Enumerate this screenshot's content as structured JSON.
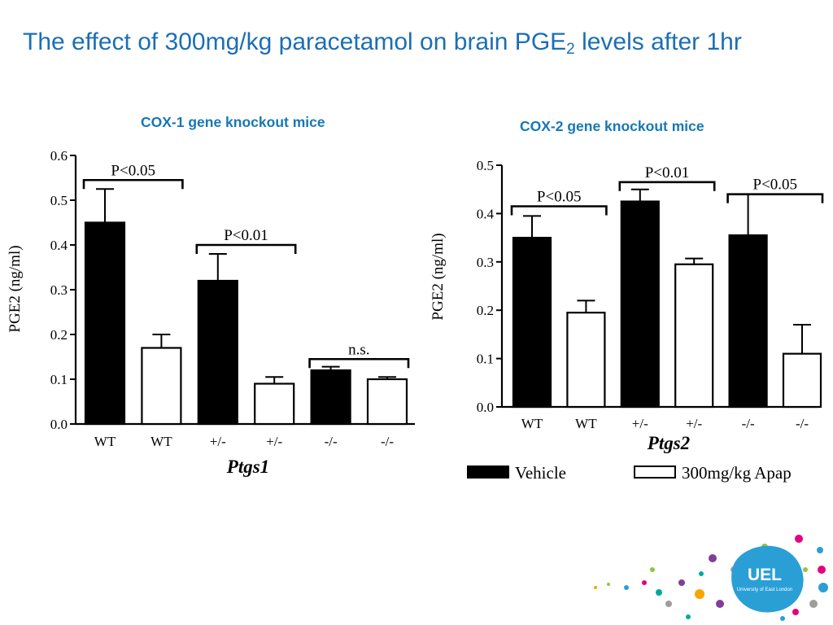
{
  "slide": {
    "title_main": "The effect of 300mg/kg paracetamol on brain PGE",
    "title_sub": "2",
    "title_rest": " levels after 1hr"
  },
  "panels": {
    "left_heading": "COX-1 gene knockout mice",
    "right_heading": "COX-2 gene knockout mice"
  },
  "logo": {
    "text": "UEL",
    "subtext": "University of East London",
    "colors": [
      "#e6007e",
      "#2a9fd6",
      "#8dc63f",
      "#f7a600",
      "#7f3f98",
      "#00a99d",
      "#9d9d9c"
    ]
  },
  "chart_data": [
    {
      "type": "bar",
      "xlabel": "Ptgs1",
      "ylabel": "PGE2 (ng/ml)",
      "ylim": [
        0,
        0.6
      ],
      "yticks": [
        "0.0",
        "0.1",
        "0.2",
        "0.3",
        "0.4",
        "0.5",
        "0.6"
      ],
      "categories": [
        "WT",
        "WT",
        "+/-",
        "+/-",
        "-/-",
        "-/-"
      ],
      "groups": [
        "Vehicle",
        "300mg/kg Apap",
        "Vehicle",
        "300mg/kg Apap",
        "Vehicle",
        "300mg/kg Apap"
      ],
      "values": [
        0.45,
        0.17,
        0.32,
        0.09,
        0.12,
        0.1
      ],
      "errors": [
        0.075,
        0.03,
        0.06,
        0.015,
        0.008,
        0.005
      ],
      "annotations": [
        {
          "text": "P<0.05",
          "from": 0,
          "to": 1,
          "level": 0.545
        },
        {
          "text": "P<0.01",
          "from": 2,
          "to": 3,
          "level": 0.4
        },
        {
          "text": "n.s.",
          "from": 4,
          "to": 5,
          "level": 0.145
        }
      ]
    },
    {
      "type": "bar",
      "xlabel": "Ptgs2",
      "ylabel": "PGE2 (ng/ml)",
      "ylim": [
        0,
        0.5
      ],
      "yticks": [
        "0.0",
        "0.1",
        "0.2",
        "0.3",
        "0.4",
        "0.5"
      ],
      "categories": [
        "WT",
        "WT",
        "+/-",
        "+/-",
        "-/-",
        "-/-"
      ],
      "groups": [
        "Vehicle",
        "300mg/kg Apap",
        "Vehicle",
        "300mg/kg Apap",
        "Vehicle",
        "300mg/kg Apap"
      ],
      "values": [
        0.35,
        0.195,
        0.425,
        0.295,
        0.355,
        0.11
      ],
      "errors": [
        0.045,
        0.025,
        0.025,
        0.012,
        0.085,
        0.06
      ],
      "annotations": [
        {
          "text": "P<0.05",
          "from": 0,
          "to": 1,
          "level": 0.415
        },
        {
          "text": "P<0.01",
          "from": 2,
          "to": 3,
          "level": 0.465
        },
        {
          "text": "P<0.05",
          "from": 4,
          "to": 5,
          "level": 0.44
        }
      ],
      "legend": [
        {
          "label": "Vehicle",
          "fill": "#000000"
        },
        {
          "label": "300mg/kg Apap",
          "fill": "#ffffff"
        }
      ]
    }
  ]
}
